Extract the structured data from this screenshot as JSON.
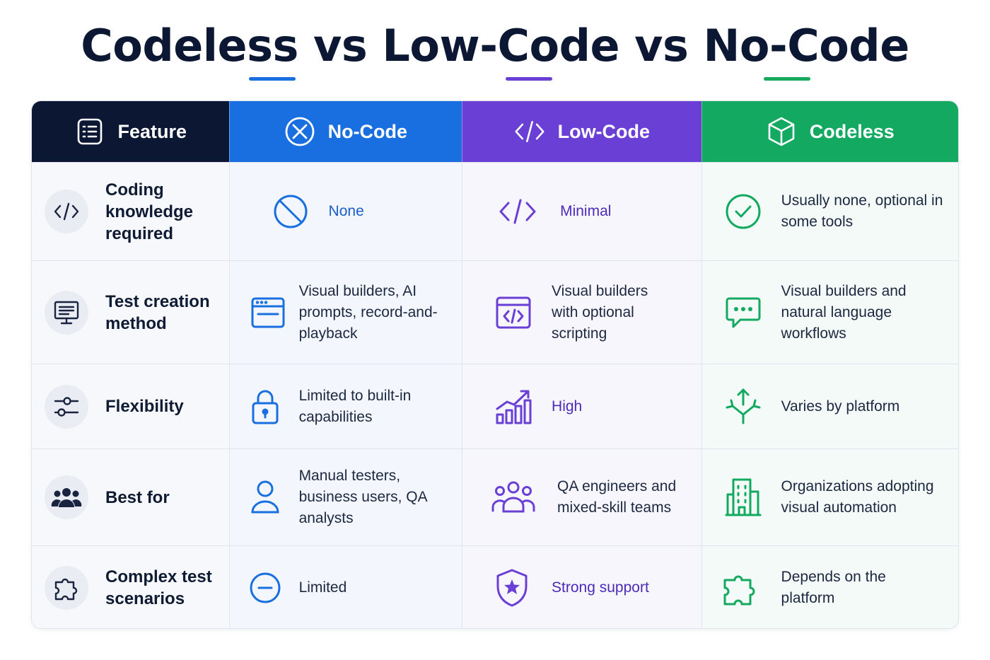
{
  "title": "Codeless vs Low-Code vs No-Code",
  "colors": {
    "dark": "#0b1733",
    "nocode": "#1a6fe0",
    "lowcode": "#6a3fd6",
    "codeless": "#13a960"
  },
  "headers": [
    {
      "label": "Feature",
      "icon": "list-icon"
    },
    {
      "label": "No-Code",
      "icon": "x-circle-icon"
    },
    {
      "label": "Low-Code",
      "icon": "code-icon"
    },
    {
      "label": "Codeless",
      "icon": "cube-icon"
    }
  ],
  "rows": [
    {
      "feature": "Coding knowledge required",
      "feature_icon": "code-icon",
      "no_code": "None",
      "no_code_icon": "prohibited-icon",
      "low_code": "Minimal",
      "low_code_icon": "code-icon",
      "codeless": "Usually none, optional in some tools",
      "codeless_icon": "check-circle-icon"
    },
    {
      "feature": "Test creation method",
      "feature_icon": "monitor-icon",
      "no_code": "Visual builders, AI prompts, record-and-playback",
      "no_code_icon": "browser-window-icon",
      "low_code": "Visual builders with optional scripting",
      "low_code_icon": "code-window-icon",
      "codeless": "Visual builders and natural language workflows",
      "codeless_icon": "chat-bubble-icon"
    },
    {
      "feature": "Flexibility",
      "feature_icon": "sliders-icon",
      "no_code": "Limited to built-in capabilities",
      "no_code_icon": "lock-icon",
      "low_code": "High",
      "low_code_icon": "growth-chart-icon",
      "codeless": "Varies by platform",
      "codeless_icon": "split-arrows-icon"
    },
    {
      "feature": "Best for",
      "feature_icon": "users-icon",
      "no_code": "Manual testers, business users, QA analysts",
      "no_code_icon": "user-icon",
      "low_code": "QA engineers and mixed-skill teams",
      "low_code_icon": "team-icon",
      "codeless": "Organizations adopting visual automation",
      "codeless_icon": "building-icon"
    },
    {
      "feature": "Complex test scenarios",
      "feature_icon": "puzzle-icon",
      "no_code": "Limited",
      "no_code_icon": "minus-circle-icon",
      "low_code": "Strong support",
      "low_code_icon": "shield-star-icon",
      "codeless": "Depends on the platform",
      "codeless_icon": "puzzle-icon"
    }
  ]
}
